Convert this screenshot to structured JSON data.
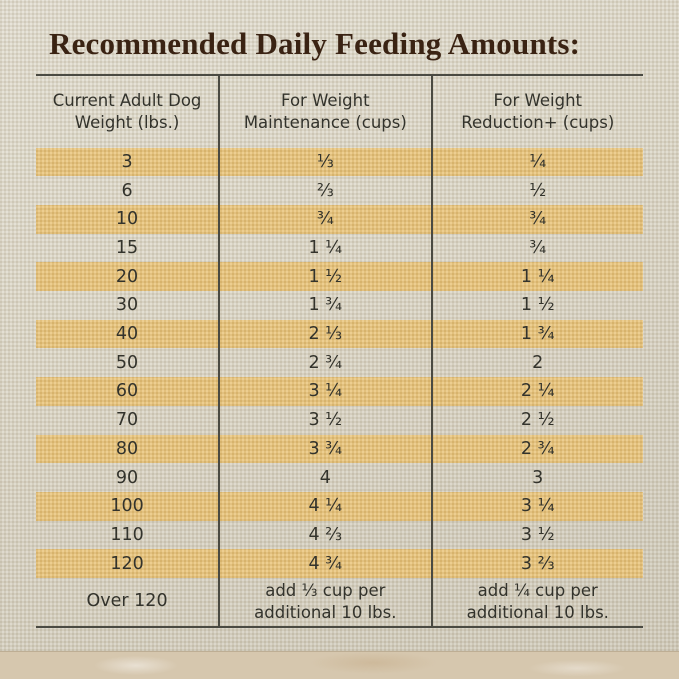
{
  "title": "Recommended Daily Feeding Amounts:",
  "table": {
    "headers": [
      "Current Adult Dog\nWeight (lbs.)",
      "For Weight\nMaintenance (cups)",
      "For Weight\nReduction+ (cups)"
    ],
    "rows": [
      {
        "weight": "3",
        "maintenance": "⅓",
        "reduction": "¼"
      },
      {
        "weight": "6",
        "maintenance": "⅔",
        "reduction": "½"
      },
      {
        "weight": "10",
        "maintenance": "¾",
        "reduction": "¾"
      },
      {
        "weight": "15",
        "maintenance": "1 ¼",
        "reduction": "¾"
      },
      {
        "weight": "20",
        "maintenance": "1 ½",
        "reduction": "1 ¼"
      },
      {
        "weight": "30",
        "maintenance": "1 ¾",
        "reduction": "1 ½"
      },
      {
        "weight": "40",
        "maintenance": "2 ⅓",
        "reduction": "1 ¾"
      },
      {
        "weight": "50",
        "maintenance": "2 ¾",
        "reduction": "2"
      },
      {
        "weight": "60",
        "maintenance": "3 ¼",
        "reduction": "2 ¼"
      },
      {
        "weight": "70",
        "maintenance": "3 ½",
        "reduction": "2 ½"
      },
      {
        "weight": "80",
        "maintenance": "3 ¾",
        "reduction": "2 ¾"
      },
      {
        "weight": "90",
        "maintenance": "4",
        "reduction": "3"
      },
      {
        "weight": "100",
        "maintenance": "4 ¼",
        "reduction": "3 ¼"
      },
      {
        "weight": "110",
        "maintenance": "4 ⅔",
        "reduction": "3 ½"
      },
      {
        "weight": "120",
        "maintenance": "4 ¾",
        "reduction": "3 ⅔"
      },
      {
        "weight": "Over 120",
        "maintenance": "add ⅓ cup per\nadditional 10 lbs.",
        "reduction": "add ¼ cup per\nadditional 10 lbs."
      }
    ]
  },
  "colors": {
    "band": "#e9c47a",
    "title": "#3a2313",
    "line": "#4a4a42",
    "text": "#33332c",
    "background": "#ddd8c9",
    "bottom_strip": "#d6c7ae"
  }
}
